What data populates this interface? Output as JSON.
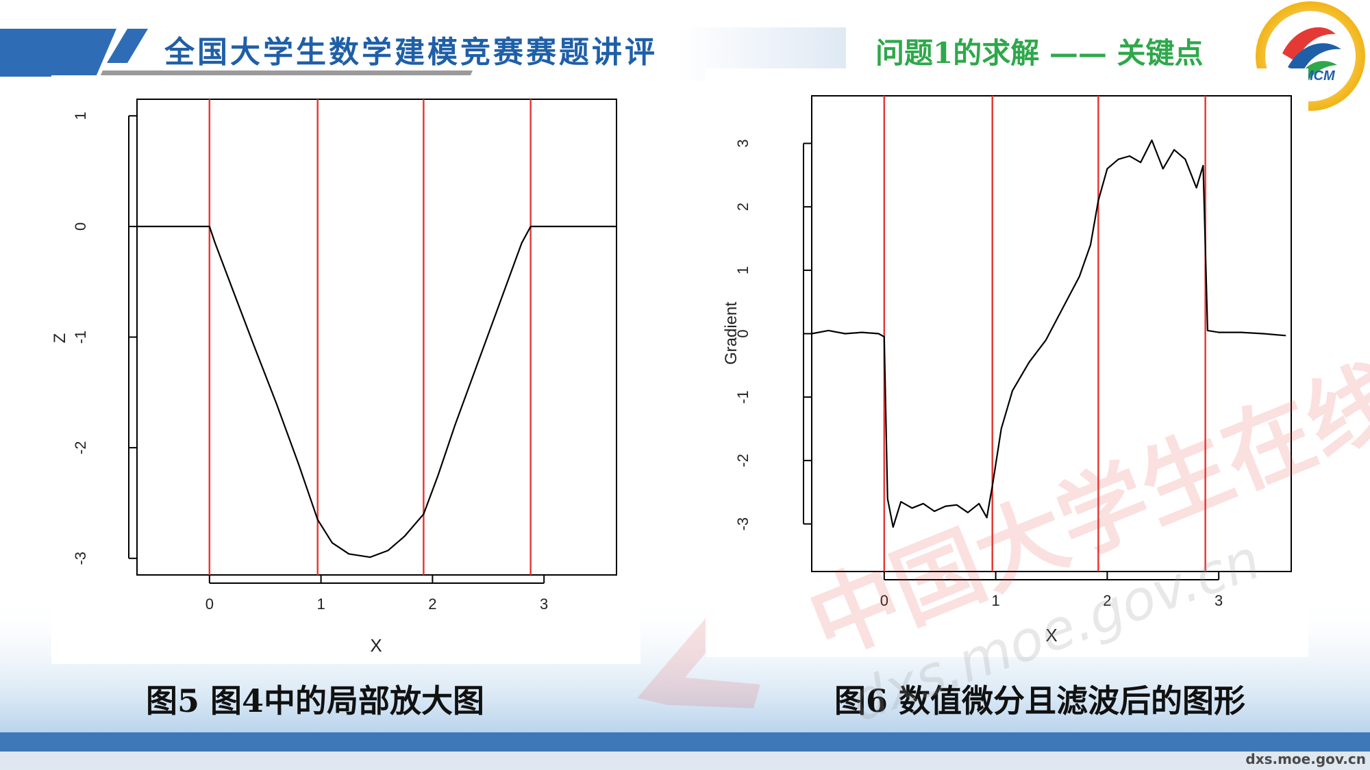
{
  "header": {
    "title": "全国大学生数学建模竞赛赛题讲评",
    "subtitle": "问题1的求解 —— 关键点",
    "logo_text": "CUMCM",
    "accent_color": "#1f5fa8",
    "subtitle_color": "#2ea84a"
  },
  "figures": [
    {
      "caption": "图5  图4中的局部放大图"
    },
    {
      "caption": "图6   数值微分且滤波后的图形"
    }
  ],
  "watermark": {
    "text": "中国大学生在线",
    "url": "dxs.moe.gov.cn"
  },
  "footer": {
    "url": "dxs.moe.gov.cn"
  },
  "chart_data": [
    {
      "type": "line",
      "xlabel": "X",
      "ylabel": "Z",
      "xlim": [
        -0.65,
        3.65
      ],
      "ylim": [
        -3.15,
        1.15
      ],
      "xticks": [
        0,
        1,
        2,
        3
      ],
      "yticks": [
        1,
        0,
        -1,
        -2,
        -3
      ],
      "vlines": [
        0,
        0.97,
        1.92,
        2.88
      ],
      "vline_color": "#e53935",
      "line_color": "#000000",
      "x": [
        -0.65,
        -0.4,
        -0.2,
        0,
        0.05,
        0.2,
        0.4,
        0.6,
        0.8,
        0.97,
        1.1,
        1.25,
        1.44,
        1.6,
        1.75,
        1.92,
        2.05,
        2.2,
        2.4,
        2.6,
        2.8,
        2.88,
        3.0,
        3.3,
        3.65
      ],
      "y": [
        0.0,
        0.0,
        0.0,
        0.0,
        -0.15,
        -0.55,
        -1.08,
        -1.6,
        -2.15,
        -2.65,
        -2.86,
        -2.96,
        -2.99,
        -2.93,
        -2.8,
        -2.6,
        -2.25,
        -1.8,
        -1.25,
        -0.7,
        -0.15,
        0.0,
        0.0,
        0.0,
        0.0
      ]
    },
    {
      "type": "line",
      "xlabel": "X",
      "ylabel": "Gradient",
      "xlim": [
        -0.65,
        3.65
      ],
      "ylim": [
        -3.75,
        3.75
      ],
      "xticks": [
        0,
        1,
        2,
        3
      ],
      "yticks": [
        3,
        2,
        1,
        0,
        -1,
        -2,
        -3
      ],
      "vlines": [
        0,
        0.97,
        1.92,
        2.88
      ],
      "vline_color": "#e53935",
      "line_color": "#000000",
      "x": [
        -0.65,
        -0.5,
        -0.35,
        -0.2,
        -0.05,
        0,
        0.03,
        0.08,
        0.15,
        0.25,
        0.35,
        0.45,
        0.55,
        0.65,
        0.75,
        0.85,
        0.92,
        0.97,
        1.05,
        1.15,
        1.3,
        1.45,
        1.6,
        1.75,
        1.85,
        1.92,
        2.0,
        2.1,
        2.2,
        2.3,
        2.4,
        2.5,
        2.6,
        2.7,
        2.8,
        2.86,
        2.9,
        3.0,
        3.2,
        3.4,
        3.6
      ],
      "y": [
        0.0,
        0.05,
        0.0,
        0.02,
        0.0,
        -0.05,
        -2.6,
        -3.05,
        -2.65,
        -2.75,
        -2.68,
        -2.8,
        -2.72,
        -2.7,
        -2.82,
        -2.68,
        -2.9,
        -2.4,
        -1.5,
        -0.9,
        -0.45,
        -0.1,
        0.4,
        0.9,
        1.4,
        2.1,
        2.6,
        2.75,
        2.8,
        2.7,
        3.05,
        2.6,
        2.9,
        2.75,
        2.3,
        2.65,
        0.05,
        0.02,
        0.02,
        0.0,
        -0.03
      ]
    }
  ]
}
